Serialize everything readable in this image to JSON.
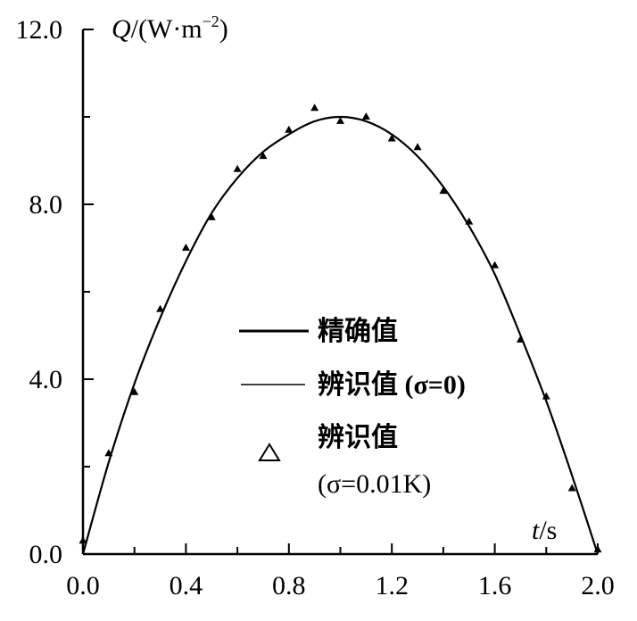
{
  "chart_data": {
    "type": "line",
    "title": "",
    "ylabel_var": "Q",
    "ylabel_unit": "/(W·m",
    "ylabel_exp": "−2",
    "ylabel_close": ")",
    "xlabel_var": "t",
    "xlabel_unit": "/s",
    "xlim": [
      0,
      2.0
    ],
    "ylim": [
      0,
      12.0
    ],
    "xticks": [
      "0.0",
      "0.4",
      "0.8",
      "1.2",
      "1.6",
      "2.0"
    ],
    "yticks": [
      "0.0",
      "4.0",
      "8.0",
      "12.0"
    ],
    "grid": false,
    "legend_placement": "center",
    "x": [
      0,
      0.1,
      0.2,
      0.3,
      0.4,
      0.5,
      0.6,
      0.7,
      0.8,
      0.9,
      1.0,
      1.1,
      1.2,
      1.3,
      1.4,
      1.5,
      1.6,
      1.7,
      1.8,
      1.9,
      2.0
    ],
    "series": [
      {
        "name": "精确值",
        "style": "thick-line",
        "values": [
          0,
          2.1,
          3.9,
          5.4,
          6.7,
          7.8,
          8.6,
          9.2,
          9.6,
          9.9,
          10.0,
          9.9,
          9.6,
          9.1,
          8.4,
          7.5,
          6.4,
          5.0,
          3.5,
          1.8,
          0
        ]
      },
      {
        "name": "辨识值 (σ=0)",
        "style": "thin-line",
        "values": [
          0,
          2.1,
          3.9,
          5.4,
          6.7,
          7.8,
          8.6,
          9.2,
          9.6,
          9.9,
          10.0,
          9.9,
          9.6,
          9.1,
          8.4,
          7.5,
          6.4,
          5.0,
          3.5,
          1.8,
          0
        ]
      },
      {
        "name": "辨识值",
        "name_line2": "(σ=0.01K)",
        "style": "triangle",
        "values": [
          0.3,
          2.3,
          3.7,
          5.6,
          7.0,
          7.7,
          8.8,
          9.1,
          9.7,
          10.2,
          9.9,
          10.0,
          9.5,
          9.3,
          8.3,
          7.6,
          6.6,
          4.9,
          3.6,
          1.5,
          0.1
        ]
      }
    ]
  }
}
